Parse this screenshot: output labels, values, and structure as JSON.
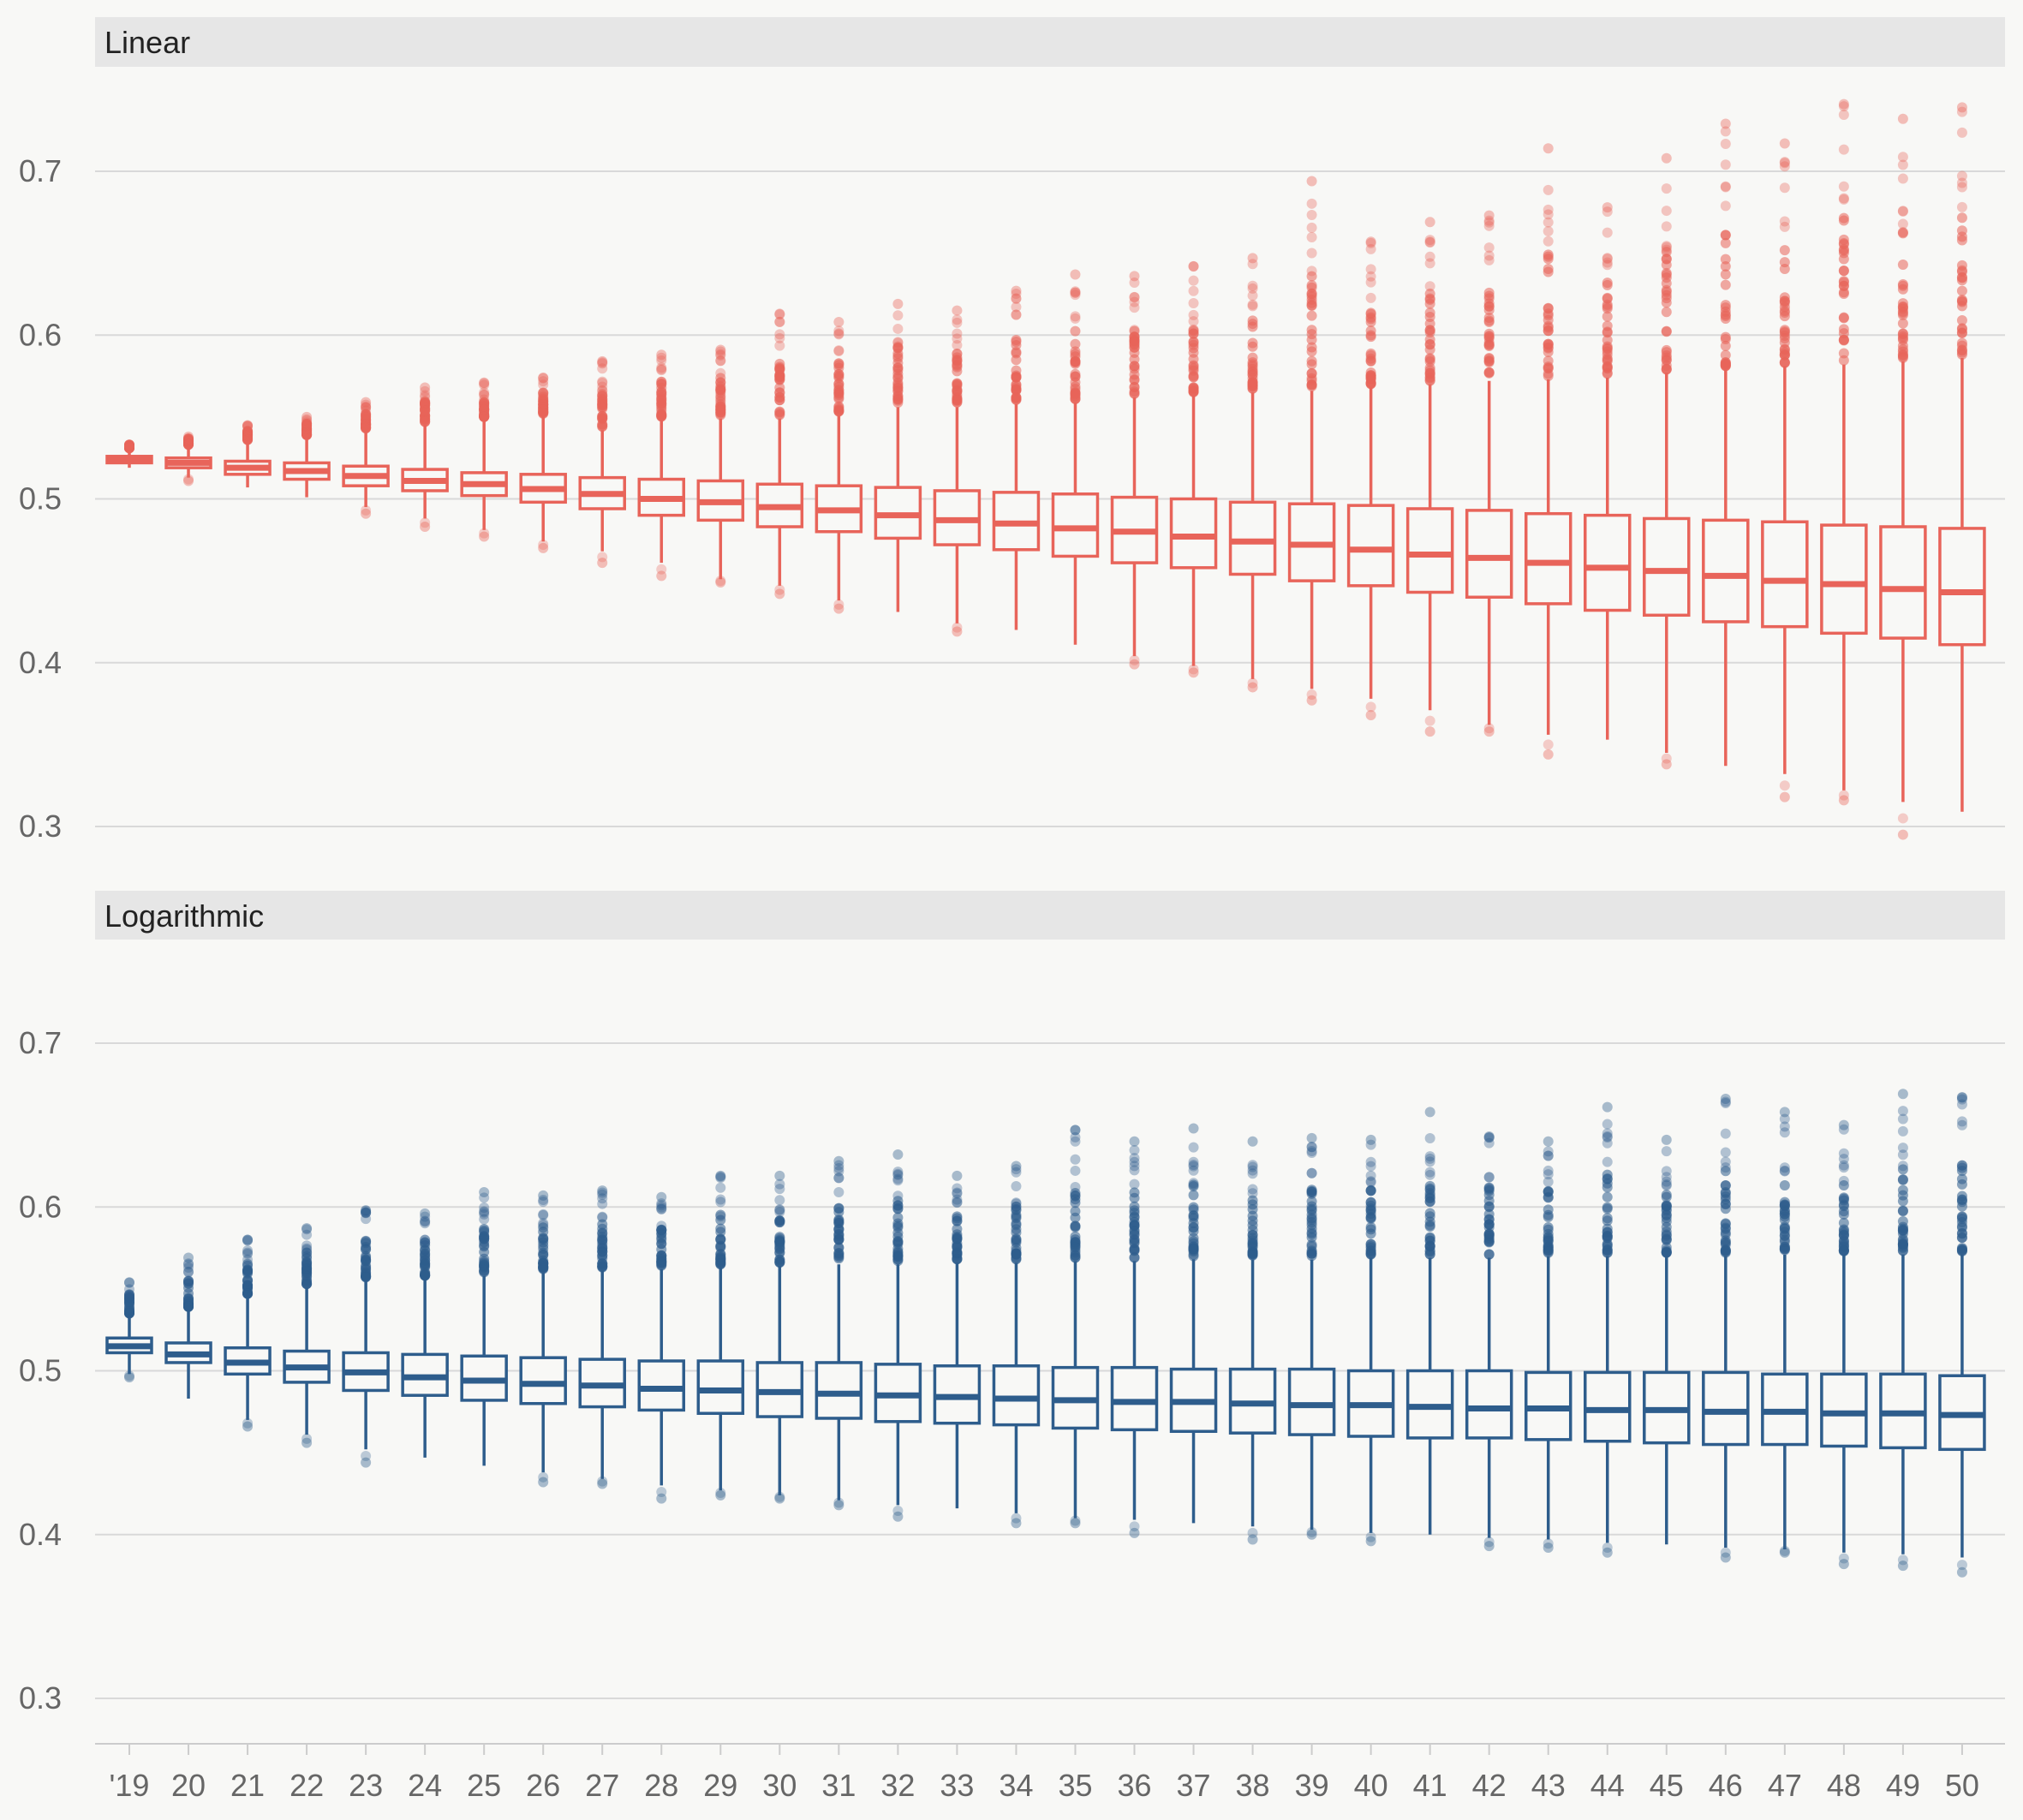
{
  "chart_data": {
    "type": "box",
    "x_tick_labels": [
      "'19",
      "20",
      "21",
      "22",
      "23",
      "24",
      "25",
      "26",
      "27",
      "28",
      "29",
      "30",
      "31",
      "32",
      "33",
      "34",
      "35",
      "36",
      "37",
      "38",
      "39",
      "40",
      "41",
      "42",
      "43",
      "44",
      "45",
      "46",
      "47",
      "48",
      "49",
      "50"
    ],
    "y_ticks": [
      "0.3",
      "0.4",
      "0.5",
      "0.6",
      "0.7"
    ],
    "ylim": [
      0.27,
      0.765
    ],
    "grid": true,
    "legend": "none",
    "panels": [
      {
        "title": "Linear",
        "color": "#e8645a",
        "median": [
          0.524,
          0.522,
          0.519,
          0.517,
          0.514,
          0.511,
          0.509,
          0.506,
          0.503,
          0.5,
          0.498,
          0.495,
          0.493,
          0.49,
          0.487,
          0.485,
          0.482,
          0.48,
          0.477,
          0.474,
          0.472,
          0.469,
          0.466,
          0.464,
          0.461,
          0.458,
          0.456,
          0.453,
          0.45,
          0.448,
          0.445,
          0.443
        ],
        "q1": [
          0.522,
          0.519,
          0.515,
          0.512,
          0.508,
          0.505,
          0.502,
          0.498,
          0.494,
          0.49,
          0.487,
          0.483,
          0.48,
          0.476,
          0.472,
          0.469,
          0.465,
          0.461,
          0.458,
          0.454,
          0.45,
          0.447,
          0.443,
          0.44,
          0.436,
          0.432,
          0.429,
          0.425,
          0.422,
          0.418,
          0.415,
          0.411
        ],
        "q3": [
          0.526,
          0.525,
          0.523,
          0.522,
          0.52,
          0.518,
          0.516,
          0.515,
          0.513,
          0.512,
          0.511,
          0.509,
          0.508,
          0.507,
          0.505,
          0.504,
          0.503,
          0.501,
          0.5,
          0.498,
          0.497,
          0.496,
          0.494,
          0.493,
          0.491,
          0.49,
          0.488,
          0.487,
          0.486,
          0.484,
          0.483,
          0.482
        ],
        "whisker_low": [
          0.519,
          0.513,
          0.507,
          0.501,
          0.495,
          0.488,
          0.481,
          0.474,
          0.468,
          0.461,
          0.451,
          0.447,
          0.438,
          0.431,
          0.424,
          0.42,
          0.411,
          0.404,
          0.398,
          0.39,
          0.384,
          0.378,
          0.371,
          0.362,
          0.356,
          0.353,
          0.345,
          0.337,
          0.332,
          0.322,
          0.315,
          0.309
        ],
        "whisker_high": [
          0.529,
          0.531,
          0.534,
          0.537,
          0.541,
          0.545,
          0.548,
          0.55,
          0.542,
          0.548,
          0.549,
          0.549,
          0.551,
          0.556,
          0.556,
          0.558,
          0.559,
          0.562,
          0.563,
          0.565,
          0.566,
          0.568,
          0.57,
          0.572,
          0.573,
          0.574,
          0.577,
          0.579,
          0.581,
          0.582,
          0.584,
          0.586
        ],
        "outlier_max": [
          0.533,
          0.538,
          0.545,
          0.55,
          0.559,
          0.568,
          0.571,
          0.574,
          0.584,
          0.588,
          0.591,
          0.613,
          0.608,
          0.619,
          0.615,
          0.627,
          0.637,
          0.636,
          0.642,
          0.647,
          0.694,
          0.657,
          0.669,
          0.673,
          0.714,
          0.678,
          0.708,
          0.729,
          0.717,
          0.741,
          0.732,
          0.739
        ],
        "outlier_min": [
          0.518,
          0.511,
          0.506,
          0.5,
          0.491,
          0.483,
          0.477,
          0.47,
          0.461,
          0.453,
          0.449,
          0.442,
          0.433,
          0.431,
          0.419,
          0.42,
          0.411,
          0.399,
          0.394,
          0.385,
          0.377,
          0.368,
          0.358,
          0.358,
          0.344,
          0.353,
          0.338,
          0.336,
          0.318,
          0.316,
          0.295,
          0.309
        ]
      },
      {
        "title": "Logarithmic",
        "color": "#2e5d8c",
        "median": [
          0.515,
          0.51,
          0.505,
          0.502,
          0.499,
          0.496,
          0.494,
          0.492,
          0.491,
          0.489,
          0.488,
          0.487,
          0.486,
          0.485,
          0.484,
          0.483,
          0.482,
          0.481,
          0.481,
          0.48,
          0.479,
          0.479,
          0.478,
          0.477,
          0.477,
          0.476,
          0.476,
          0.475,
          0.475,
          0.474,
          0.474,
          0.473
        ],
        "q1": [
          0.511,
          0.505,
          0.498,
          0.493,
          0.488,
          0.485,
          0.482,
          0.48,
          0.478,
          0.476,
          0.474,
          0.472,
          0.471,
          0.469,
          0.468,
          0.467,
          0.465,
          0.464,
          0.463,
          0.462,
          0.461,
          0.46,
          0.459,
          0.459,
          0.458,
          0.457,
          0.456,
          0.455,
          0.455,
          0.454,
          0.453,
          0.452
        ],
        "q3": [
          0.52,
          0.517,
          0.514,
          0.512,
          0.511,
          0.51,
          0.509,
          0.508,
          0.507,
          0.506,
          0.506,
          0.505,
          0.505,
          0.504,
          0.503,
          0.503,
          0.502,
          0.502,
          0.501,
          0.501,
          0.501,
          0.5,
          0.5,
          0.5,
          0.499,
          0.499,
          0.499,
          0.499,
          0.498,
          0.498,
          0.498,
          0.497
        ],
        "whisker_low": [
          0.498,
          0.483,
          0.47,
          0.461,
          0.452,
          0.447,
          0.442,
          0.438,
          0.434,
          0.43,
          0.427,
          0.424,
          0.421,
          0.418,
          0.416,
          0.413,
          0.41,
          0.409,
          0.407,
          0.405,
          0.403,
          0.401,
          0.4,
          0.398,
          0.397,
          0.395,
          0.394,
          0.392,
          0.391,
          0.389,
          0.388,
          0.386
        ],
        "whisker_high": [
          0.533,
          0.537,
          0.545,
          0.551,
          0.555,
          0.556,
          0.558,
          0.56,
          0.561,
          0.562,
          0.563,
          0.564,
          0.565,
          0.565,
          0.566,
          0.566,
          0.567,
          0.567,
          0.568,
          0.568,
          0.568,
          0.569,
          0.569,
          0.569,
          0.57,
          0.57,
          0.57,
          0.57,
          0.571,
          0.571,
          0.571,
          0.571
        ],
        "outlier_max": [
          0.554,
          0.569,
          0.58,
          0.587,
          0.598,
          0.596,
          0.609,
          0.607,
          0.61,
          0.606,
          0.619,
          0.619,
          0.628,
          0.632,
          0.619,
          0.625,
          0.647,
          0.64,
          0.648,
          0.64,
          0.642,
          0.641,
          0.658,
          0.643,
          0.64,
          0.661,
          0.641,
          0.666,
          0.658,
          0.65,
          0.669,
          0.667
        ],
        "outlier_min": [
          0.496,
          0.482,
          0.466,
          0.456,
          0.444,
          0.446,
          0.441,
          0.432,
          0.431,
          0.422,
          0.424,
          0.422,
          0.418,
          0.411,
          0.415,
          0.407,
          0.407,
          0.401,
          0.406,
          0.397,
          0.4,
          0.396,
          0.4,
          0.393,
          0.392,
          0.389,
          0.394,
          0.386,
          0.389,
          0.382,
          0.381,
          0.377
        ]
      }
    ]
  }
}
